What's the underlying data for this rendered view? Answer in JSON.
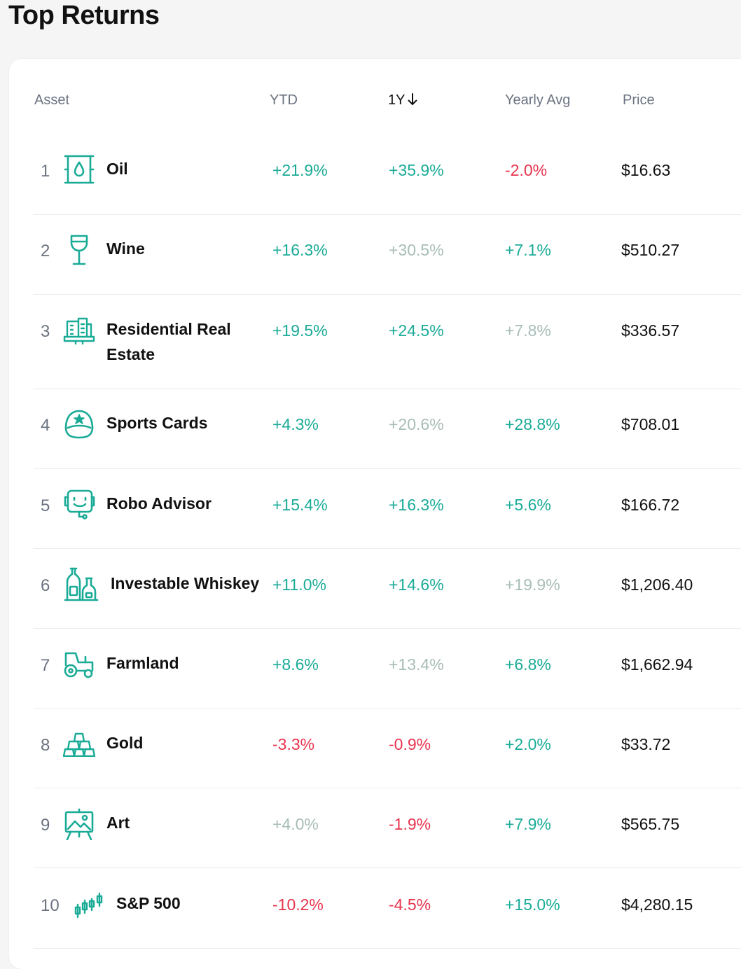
{
  "page": {
    "title": "Top Returns"
  },
  "table": {
    "headers": {
      "asset": "Asset",
      "ytd": "YTD",
      "one_year": "1Y",
      "yearly_avg": "Yearly Avg",
      "price": "Price"
    },
    "sorted_by": "1Y",
    "sort_direction": "descending",
    "rows": [
      {
        "rank": "1",
        "name": "Oil",
        "icon": "oil-barrel-icon",
        "ytd": "+21.9%",
        "ytd_tone": "pos",
        "one_year": "+35.9%",
        "one_year_tone": "pos",
        "yearly_avg": "-2.0%",
        "yearly_avg_tone": "neg",
        "price": "$16.63"
      },
      {
        "rank": "2",
        "name": "Wine",
        "icon": "wine-glass-icon",
        "ytd": "+16.3%",
        "ytd_tone": "pos",
        "one_year": "+30.5%",
        "one_year_tone": "mut",
        "yearly_avg": "+7.1%",
        "yearly_avg_tone": "pos",
        "price": "$510.27"
      },
      {
        "rank": "3",
        "name_line1": "Residential Real",
        "name_line2": "Estate",
        "icon": "building-icon",
        "ytd": "+19.5%",
        "ytd_tone": "pos",
        "one_year": "+24.5%",
        "one_year_tone": "pos",
        "yearly_avg": "+7.8%",
        "yearly_avg_tone": "mut",
        "price": "$336.57"
      },
      {
        "rank": "4",
        "name": "Sports Cards",
        "icon": "baseball-cap-icon",
        "ytd": "+4.3%",
        "ytd_tone": "pos",
        "one_year": "+20.6%",
        "one_year_tone": "mut",
        "yearly_avg": "+28.8%",
        "yearly_avg_tone": "pos",
        "price": "$708.01"
      },
      {
        "rank": "5",
        "name": "Robo Advisor",
        "icon": "robot-icon",
        "ytd": "+15.4%",
        "ytd_tone": "pos",
        "one_year": "+16.3%",
        "one_year_tone": "pos",
        "yearly_avg": "+5.6%",
        "yearly_avg_tone": "pos",
        "price": "$166.72"
      },
      {
        "rank": "6",
        "name": "Investable Whiskey",
        "icon": "whiskey-bottles-icon",
        "ytd": "+11.0%",
        "ytd_tone": "pos",
        "one_year": "+14.6%",
        "one_year_tone": "pos",
        "yearly_avg": "+19.9%",
        "yearly_avg_tone": "mut",
        "price": "$1,206.40"
      },
      {
        "rank": "7",
        "name": "Farmland",
        "icon": "tractor-icon",
        "ytd": "+8.6%",
        "ytd_tone": "pos",
        "one_year": "+13.4%",
        "one_year_tone": "mut",
        "yearly_avg": "+6.8%",
        "yearly_avg_tone": "pos",
        "price": "$1,662.94"
      },
      {
        "rank": "8",
        "name": "Gold",
        "icon": "gold-bars-icon",
        "ytd": "-3.3%",
        "ytd_tone": "neg",
        "one_year": "-0.9%",
        "one_year_tone": "neg",
        "yearly_avg": "+2.0%",
        "yearly_avg_tone": "pos",
        "price": "$33.72"
      },
      {
        "rank": "9",
        "name": "Art",
        "icon": "easel-icon",
        "ytd": "+4.0%",
        "ytd_tone": "mut",
        "one_year": "-1.9%",
        "one_year_tone": "neg",
        "yearly_avg": "+7.9%",
        "yearly_avg_tone": "pos",
        "price": "$565.75"
      },
      {
        "rank": "10",
        "name": "S&P 500",
        "icon": "candlestick-chart-icon",
        "ytd": "-10.2%",
        "ytd_tone": "neg",
        "one_year": "-4.5%",
        "one_year_tone": "neg",
        "yearly_avg": "+15.0%",
        "yearly_avg_tone": "pos",
        "price": "$4,280.15"
      }
    ]
  },
  "colors": {
    "positive": "#1aab97",
    "negative": "#e8344e",
    "muted": "#a8bdb8",
    "icon": "#1aab97"
  }
}
